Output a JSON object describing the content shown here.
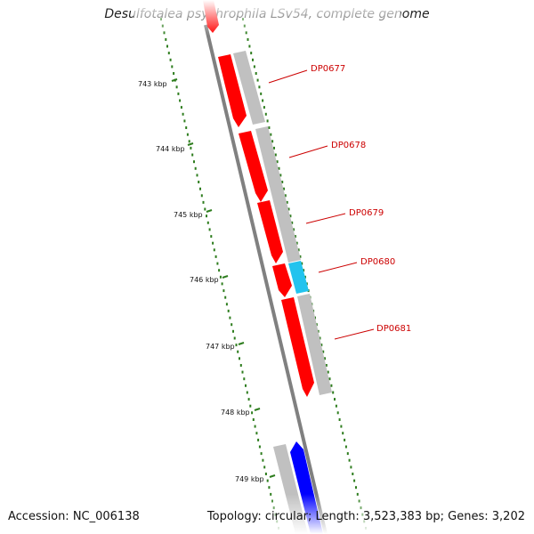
{
  "title": "Desulfotalea psychrophila LSv54, complete genome",
  "accession_text": "Accession: NC_006138",
  "summary_text": "Topology: circular; Length: 3,523,383 bp; Genes: 3,202",
  "colors": {
    "backbone": "#808080",
    "ticks": "#2e7d1e",
    "gene_forward": "#ff0000",
    "gene_reverse": "#0000ff",
    "gene_gray": "#c0c0c0",
    "gene_cyan": "#22c3ee",
    "label": "#cc0000"
  },
  "scale_labels": [
    "743 kbp",
    "744 kbp",
    "745 kbp",
    "746 kbp",
    "747 kbp",
    "748 kbp",
    "749 kbp"
  ],
  "gene_labels": [
    "DP0677",
    "DP0678",
    "DP0679",
    "DP0680",
    "DP0681"
  ],
  "icons": {
    "forward_gene": "arrow-down-red",
    "reverse_gene": "arrow-up-blue",
    "gray_gene": "bar-gray",
    "cyan_gene": "bar-cyan"
  }
}
